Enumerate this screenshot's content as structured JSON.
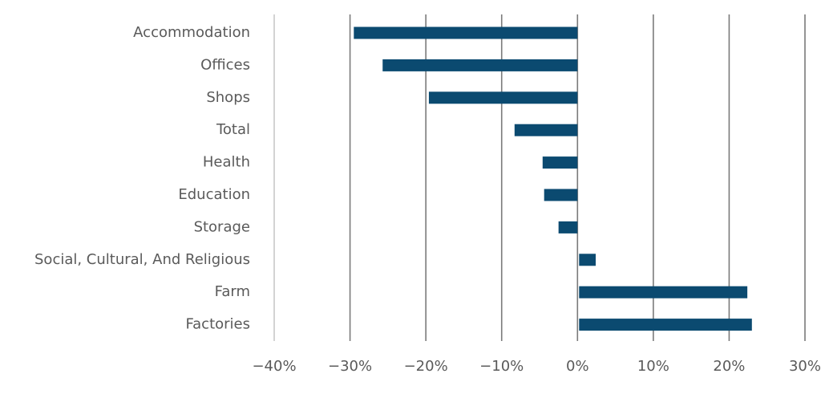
{
  "chart_data": {
    "type": "bar",
    "orientation": "horizontal",
    "categories": [
      "Accommodation",
      "Offices",
      "Shops",
      "Total",
      "Health",
      "Education",
      "Storage",
      "Social, Cultural, And Religious",
      "Farm",
      "Factories"
    ],
    "values": [
      -29.5,
      -25.7,
      -19.6,
      -8.3,
      -4.6,
      -4.4,
      -2.5,
      2.4,
      22.4,
      23.0
    ],
    "xlim": [
      -40,
      30
    ],
    "xticks": [
      -40,
      -30,
      -20,
      -10,
      0,
      10,
      20,
      30
    ],
    "xtick_labels": [
      "−40%",
      "−30%",
      "−20%",
      "−10%",
      "0%",
      "10%",
      "20%",
      "30%"
    ],
    "title": "",
    "xlabel": "",
    "ylabel": "",
    "grid": "vertical",
    "legend": "none",
    "bar_color": "#0b4a70"
  }
}
